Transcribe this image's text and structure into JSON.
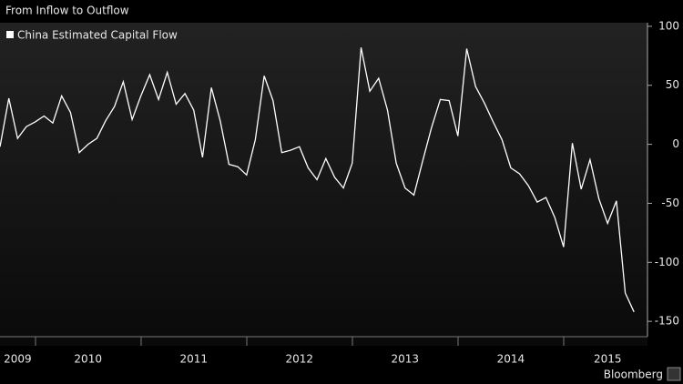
{
  "chart_data": {
    "type": "line",
    "title": "From Inflow to Outflow",
    "source": "Bloomberg",
    "categories": [
      null,
      null,
      "2009",
      null,
      null,
      null,
      null,
      null,
      null,
      null,
      "2010",
      null,
      null,
      null,
      null,
      null,
      null,
      null,
      null,
      null,
      null,
      null,
      "2011",
      null,
      null,
      null,
      null,
      null,
      null,
      null,
      null,
      null,
      null,
      null,
      "2012",
      null,
      null,
      null,
      null,
      null,
      null,
      null,
      null,
      null,
      null,
      null,
      "2013",
      null,
      null,
      null,
      null,
      null,
      null,
      null,
      null,
      null,
      null,
      null,
      "2014",
      null,
      null,
      null,
      null,
      null,
      null,
      null,
      null,
      null,
      null,
      "2015",
      null,
      null,
      null
    ],
    "series": [
      {
        "name": "China Estimated Capital Flow",
        "color": "#ffffff",
        "values": [
          -2,
          39,
          5,
          15,
          19,
          24,
          18,
          41,
          27,
          -7,
          0,
          5,
          20,
          32,
          53,
          21,
          41,
          59,
          38,
          61,
          34,
          43,
          29,
          -11,
          48,
          20,
          -17,
          -19,
          -26,
          4,
          58,
          37,
          -7,
          -5,
          -2,
          -20,
          -30,
          -12,
          -28,
          -37,
          -16,
          82,
          45,
          56,
          29,
          -16,
          -37,
          -43,
          -14,
          14,
          38,
          37,
          7,
          81,
          49,
          35,
          19,
          4,
          -20,
          -25,
          -35,
          -49,
          -45,
          -62,
          -87,
          1,
          -38,
          -13,
          -46,
          -67,
          -48,
          -126,
          -142
        ]
      }
    ],
    "ylim": [
      -163,
      103
    ],
    "yticks": [
      100,
      50,
      0,
      -50,
      -100,
      -150
    ],
    "grid": false,
    "legend": "top-left"
  }
}
